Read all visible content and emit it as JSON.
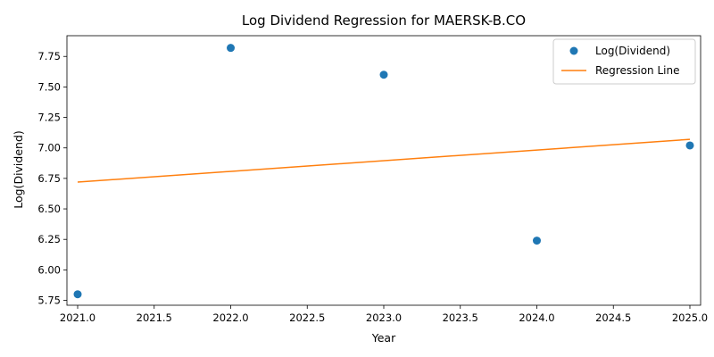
{
  "chart_data": {
    "type": "scatter",
    "title": "Log Dividend Regression for MAERSK-B.CO",
    "xlabel": "Year",
    "ylabel": "Log(Dividend)",
    "xlim": [
      2020.93,
      2025.07
    ],
    "ylim": [
      5.71,
      7.92
    ],
    "x_ticks": [
      2021.0,
      2021.5,
      2022.0,
      2022.5,
      2023.0,
      2023.5,
      2024.0,
      2024.5,
      2025.0
    ],
    "x_tick_labels": [
      "2021.0",
      "2021.5",
      "2022.0",
      "2022.5",
      "2023.0",
      "2023.5",
      "2024.0",
      "2024.5",
      "2025.0"
    ],
    "y_ticks": [
      5.75,
      6.0,
      6.25,
      6.5,
      6.75,
      7.0,
      7.25,
      7.5,
      7.75
    ],
    "y_tick_labels": [
      "5.75",
      "6.00",
      "6.25",
      "6.50",
      "6.75",
      "7.00",
      "7.25",
      "7.50",
      "7.75"
    ],
    "grid": false,
    "legend_position": "top-right",
    "series": [
      {
        "name": "Log(Dividend)",
        "kind": "scatter",
        "color": "#1f77b4",
        "x": [
          2021,
          2022,
          2023,
          2024,
          2025
        ],
        "y": [
          5.8,
          7.82,
          7.6,
          6.24,
          7.02
        ]
      },
      {
        "name": "Regression Line",
        "kind": "line",
        "color": "#ff7f0e",
        "x": [
          2021,
          2025
        ],
        "y": [
          6.72,
          7.07
        ]
      }
    ]
  }
}
